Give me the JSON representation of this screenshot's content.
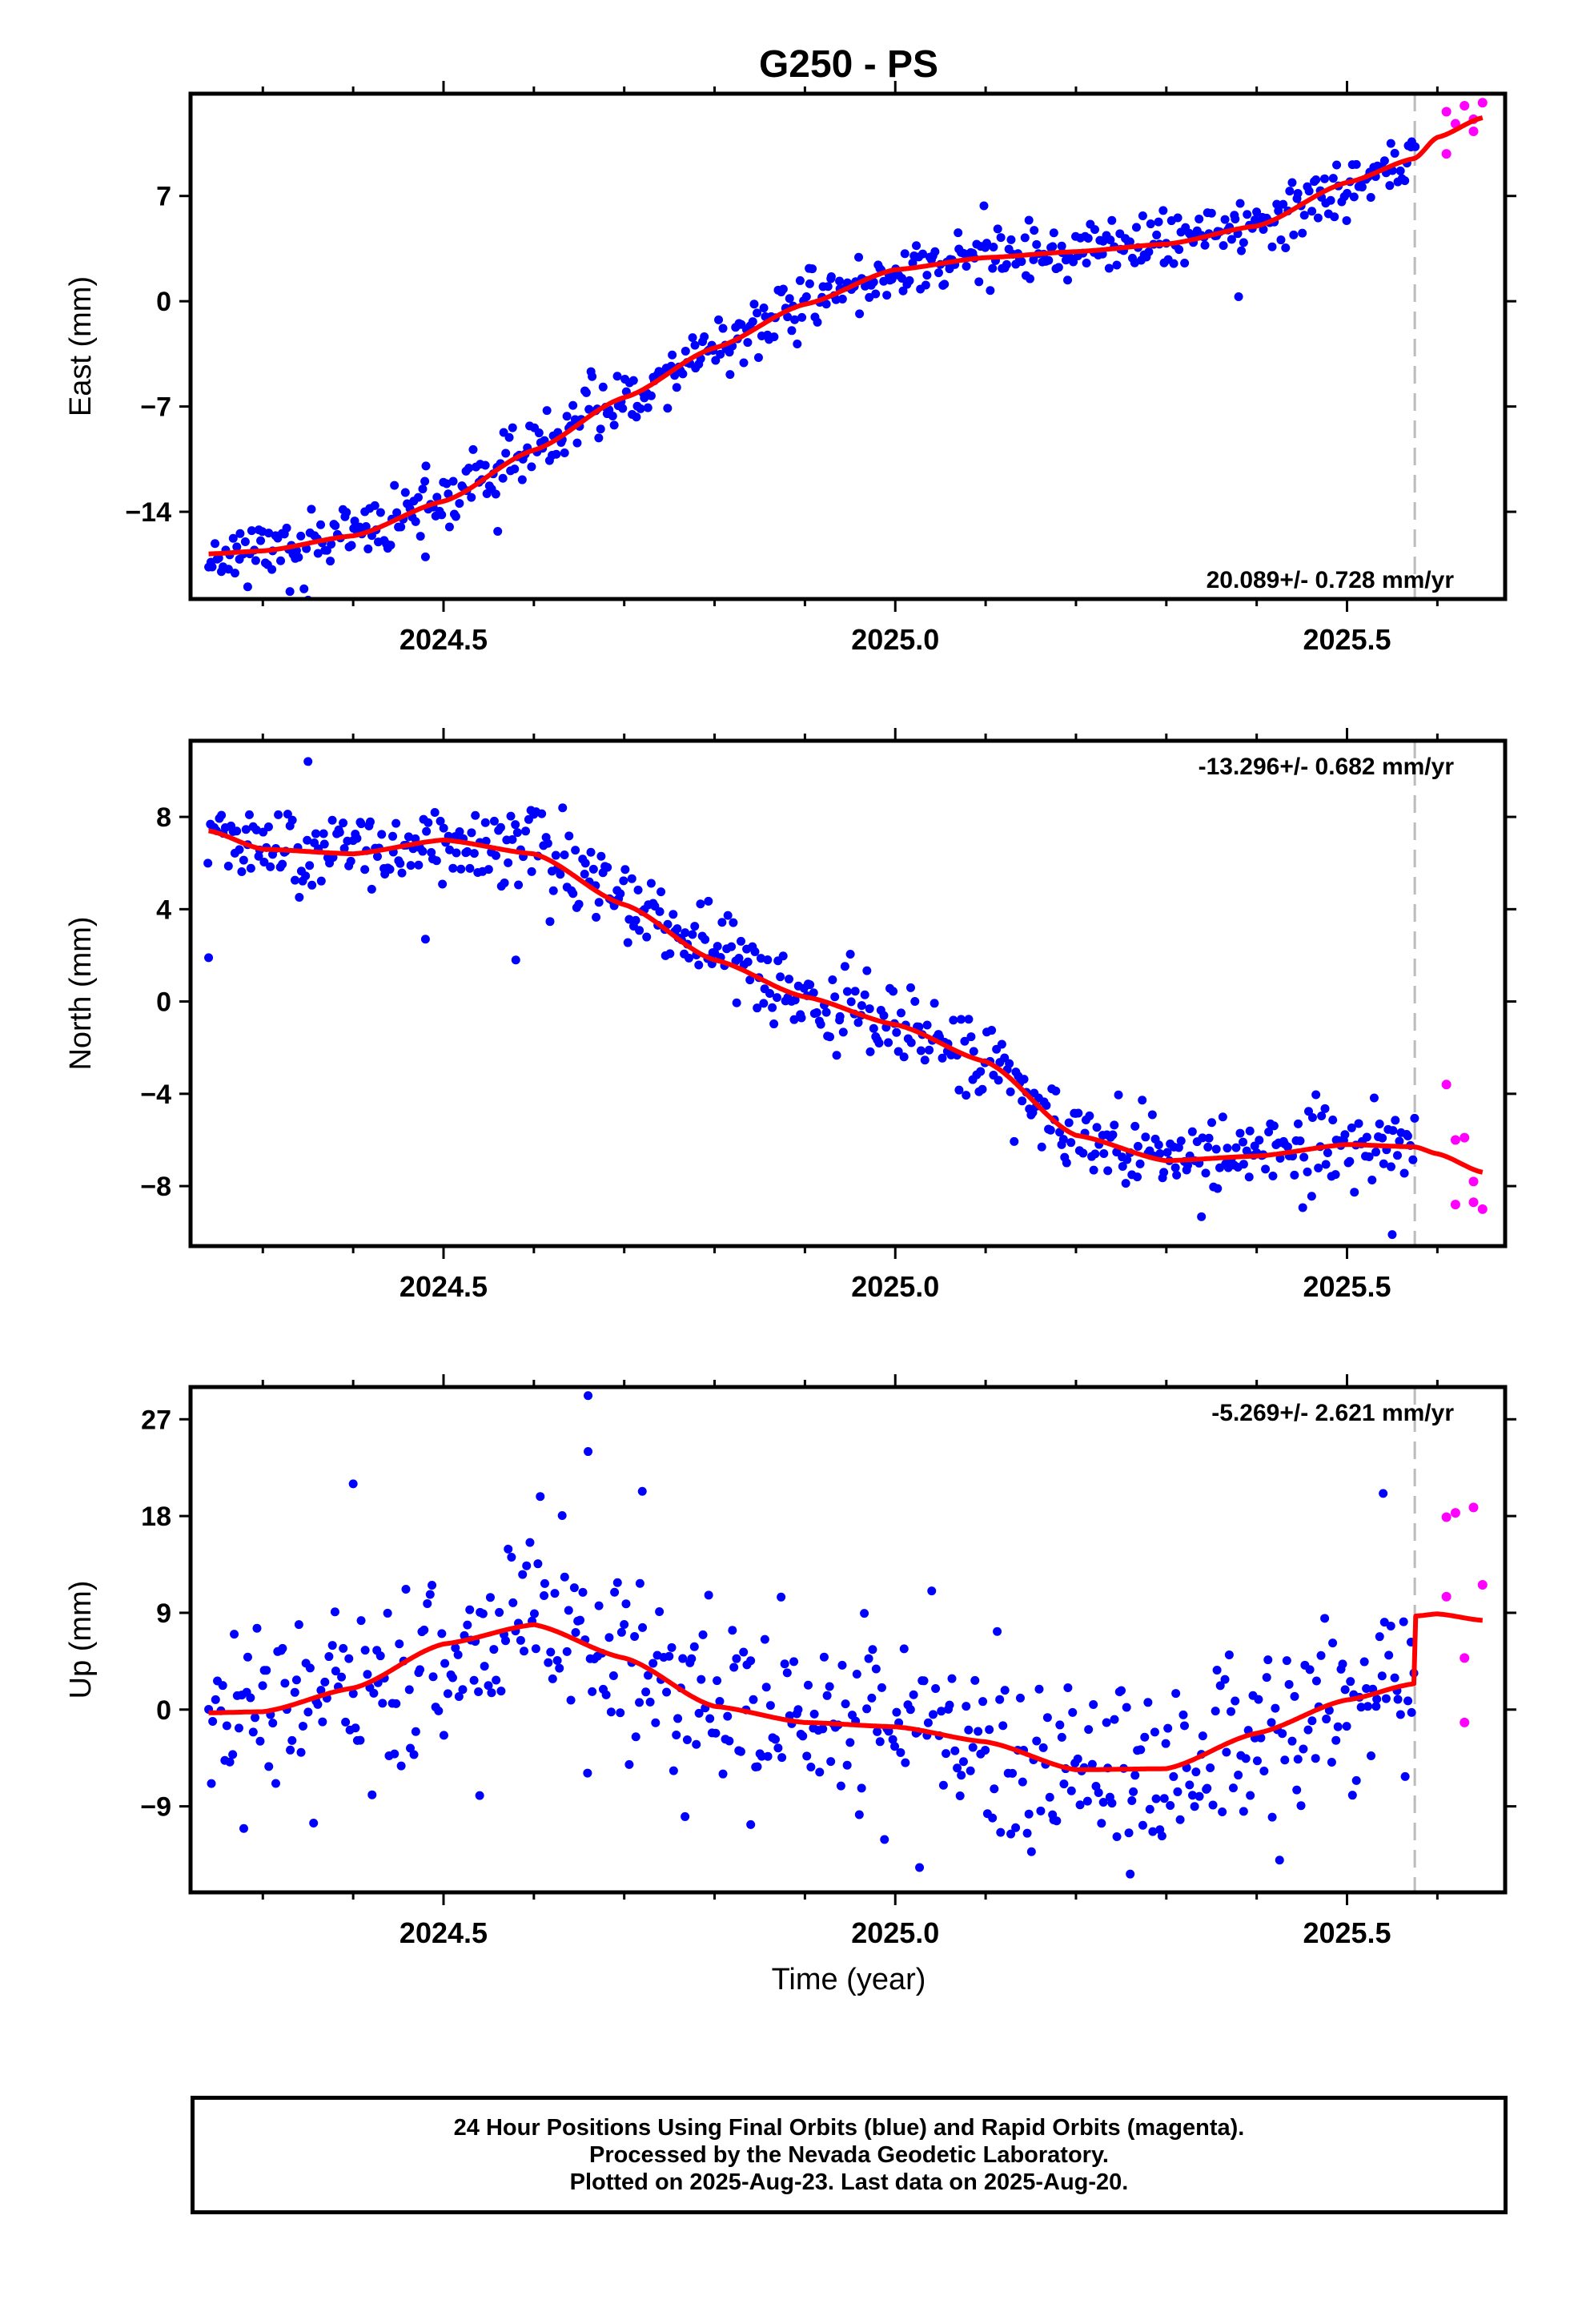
{
  "figure": {
    "title": "G250 - PS",
    "xlabel": "Time (year)"
  },
  "footer": {
    "line1": "24 Hour Positions Using Final Orbits (blue) and Rapid Orbits (magenta).",
    "line2": "Processed by the Nevada Geodetic Laboratory.",
    "line3": "Plotted on 2025-Aug-23. Last data on 2025-Aug-20."
  },
  "chart_data": [
    {
      "type": "scatter",
      "ylabel": "East (mm)",
      "rate_label": "20.089+/- 0.728 mm/yr",
      "rate_position": "bottom-right",
      "xlim": [
        2024.22,
        2025.675
      ],
      "ylim": [
        -19.8,
        13.8
      ],
      "yticks": [
        -14,
        -7,
        0,
        7
      ],
      "xticks": [
        2024.5,
        2025.0,
        2025.5
      ],
      "minor_xticks": [
        2024.3,
        2024.4,
        2024.6,
        2024.7,
        2024.8,
        2024.9,
        2025.1,
        2025.2,
        2025.3,
        2025.4,
        2025.6
      ],
      "break_line_x": 2025.575,
      "colors": {
        "final": "#0000ff",
        "rapid": "#ff00ff",
        "fit": "#ff0000",
        "break": "#bbbbbb"
      },
      "trend": {
        "t": [
          2024.24,
          2024.3,
          2024.4,
          2024.5,
          2024.6,
          2024.7,
          2024.8,
          2024.9,
          2025.0,
          2025.1,
          2025.2,
          2025.3,
          2025.4,
          2025.5,
          2025.575,
          2025.6,
          2025.65
        ],
        "y": [
          -16.8,
          -16.6,
          -15.6,
          -13.3,
          -9.9,
          -6.4,
          -3.1,
          -0.2,
          2.1,
          2.9,
          3.3,
          3.8,
          5.0,
          7.9,
          9.5,
          10.9,
          12.2
        ]
      },
      "noise": 1.0,
      "seed": 11,
      "n_points": 560,
      "outliers": [
        [
          2024.33,
          -19.3
        ],
        [
          2024.48,
          -17.0
        ],
        [
          2025.38,
          0.3
        ],
        [
          2024.56,
          -15.3
        ]
      ],
      "rapid": {
        "x": [
          2025.61,
          2025.62,
          2025.63,
          2025.64,
          2025.65,
          2025.61,
          2025.64
        ],
        "y": [
          12.6,
          11.8,
          13.0,
          12.1,
          13.2,
          9.8,
          11.3
        ]
      }
    },
    {
      "type": "scatter",
      "ylabel": "North (mm)",
      "rate_label": "-13.296+/- 0.682 mm/yr",
      "rate_position": "top-right",
      "xlim": [
        2024.22,
        2025.675
      ],
      "ylim": [
        -10.6,
        11.3
      ],
      "yticks": [
        -8,
        -4,
        0,
        4,
        8
      ],
      "xticks": [
        2024.5,
        2025.0,
        2025.5
      ],
      "minor_xticks": [
        2024.3,
        2024.4,
        2024.6,
        2024.7,
        2024.8,
        2024.9,
        2025.1,
        2025.2,
        2025.3,
        2025.4,
        2025.6
      ],
      "break_line_x": 2025.575,
      "colors": {
        "final": "#0000ff",
        "rapid": "#ff00ff",
        "fit": "#ff0000",
        "break": "#bbbbbb"
      },
      "trend": {
        "t": [
          2024.24,
          2024.3,
          2024.4,
          2024.5,
          2024.6,
          2024.7,
          2024.8,
          2024.9,
          2025.0,
          2025.1,
          2025.2,
          2025.3,
          2025.4,
          2025.5,
          2025.575,
          2025.6,
          2025.65
        ],
        "y": [
          7.4,
          6.6,
          6.4,
          7.0,
          6.4,
          4.2,
          1.8,
          0.2,
          -1.0,
          -2.6,
          -5.8,
          -6.9,
          -6.7,
          -6.2,
          -6.3,
          -6.6,
          -7.4
        ]
      },
      "noise": 0.9,
      "seed": 23,
      "n_points": 560,
      "outliers": [
        [
          2024.24,
          1.9
        ],
        [
          2024.48,
          2.7
        ],
        [
          2024.58,
          1.8
        ],
        [
          2024.35,
          10.4
        ],
        [
          2025.55,
          -10.1
        ]
      ],
      "rapid": {
        "x": [
          2025.61,
          2025.62,
          2025.63,
          2025.64,
          2025.65,
          2025.62,
          2025.64
        ],
        "y": [
          -3.6,
          -6.0,
          -5.9,
          -8.7,
          -9.0,
          -8.8,
          -7.8
        ]
      }
    },
    {
      "type": "scatter",
      "ylabel": "Up (mm)",
      "rate_label": "-5.269+/- 2.621 mm/yr",
      "rate_position": "top-right",
      "xlim": [
        2024.22,
        2025.675
      ],
      "ylim": [
        -17.0,
        30.0
      ],
      "yticks": [
        -9,
        0,
        9,
        18,
        27
      ],
      "xticks": [
        2024.5,
        2025.0,
        2025.5
      ],
      "minor_xticks": [
        2024.3,
        2024.4,
        2024.6,
        2024.7,
        2024.8,
        2024.9,
        2025.1,
        2025.2,
        2025.3,
        2025.4,
        2025.6
      ],
      "break_line_x": 2025.575,
      "colors": {
        "final": "#0000ff",
        "rapid": "#ff00ff",
        "fit": "#ff0000",
        "break": "#bbbbbb"
      },
      "trend": {
        "t": [
          2024.24,
          2024.3,
          2024.4,
          2024.5,
          2024.6,
          2024.7,
          2024.8,
          2024.9,
          2025.0,
          2025.1,
          2025.2,
          2025.3,
          2025.4,
          2025.5,
          2025.574,
          2025.576,
          2025.6,
          2025.65
        ],
        "y": [
          -0.3,
          -0.2,
          2.0,
          6.1,
          7.9,
          4.8,
          0.3,
          -1.2,
          -1.6,
          -3.0,
          -5.6,
          -5.5,
          -2.2,
          0.9,
          2.4,
          8.7,
          8.9,
          8.3
        ]
      },
      "noise": 4.3,
      "seed": 37,
      "n_points": 520,
      "outliers": [
        [
          2024.4,
          21.0
        ],
        [
          2024.66,
          29.2
        ],
        [
          2024.66,
          24.0
        ],
        [
          2024.72,
          20.3
        ],
        [
          2025.26,
          -15.3
        ],
        [
          2025.54,
          20.1
        ],
        [
          2024.54,
          -8.0
        ],
        [
          2024.84,
          -10.7
        ]
      ],
      "rapid": {
        "x": [
          2025.61,
          2025.62,
          2025.63,
          2025.64,
          2025.65,
          2025.61,
          2025.63
        ],
        "y": [
          17.9,
          18.3,
          4.8,
          18.8,
          11.6,
          10.5,
          -1.2
        ]
      }
    }
  ]
}
